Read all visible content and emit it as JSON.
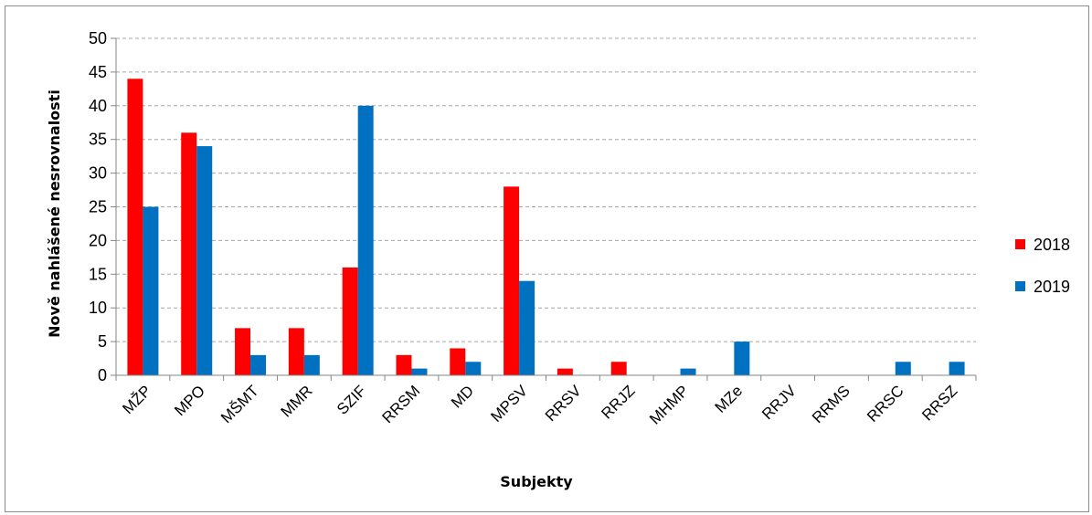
{
  "chart_data": {
    "type": "bar",
    "title": "",
    "xlabel": "Subjekty",
    "ylabel": "Nově nahlášené nesrovnalosti",
    "ylim": [
      0,
      50
    ],
    "yticks": [
      0,
      5,
      10,
      15,
      20,
      25,
      30,
      35,
      40,
      45,
      50
    ],
    "grid": "horizontal-dashed",
    "legend_position": "right",
    "categories": [
      "MŽP",
      "MPO",
      "MŠMT",
      "MMR",
      "SZIF",
      "RRSM",
      "MD",
      "MPSV",
      "RRSV",
      "RRJZ",
      "MHMP",
      "MZe",
      "RRJV",
      "RRMS",
      "RRSC",
      "RRSZ"
    ],
    "series": [
      {
        "name": "2018",
        "color": "#ff0000",
        "values": [
          44,
          36,
          7,
          7,
          16,
          3,
          4,
          28,
          1,
          2,
          0,
          0,
          0,
          0,
          0,
          0
        ]
      },
      {
        "name": "2019",
        "color": "#0070c0",
        "values": [
          25,
          34,
          3,
          3,
          40,
          1,
          2,
          14,
          0,
          0,
          1,
          5,
          0,
          0,
          2,
          2
        ]
      }
    ]
  }
}
